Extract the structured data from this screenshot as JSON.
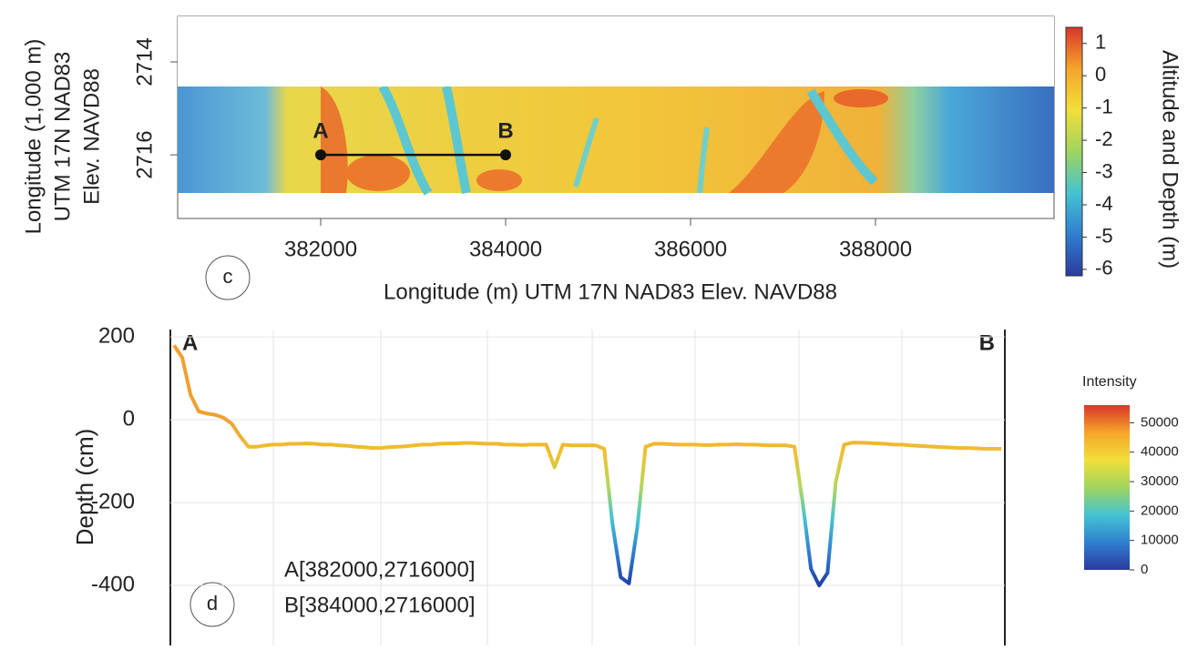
{
  "chart_data": [
    {
      "type": "raster",
      "ylabel": [
        "Longitude (1,000 m)",
        "UTM 17N NAD83",
        "Elev. NAVD88"
      ],
      "xlabel": "Longitude (m) UTM 17N NAD83 Elev. NAVD88",
      "panel_label": "c",
      "xlim": [
        380453,
        389931
      ],
      "xticks": [
        382000,
        384000,
        386000,
        388000
      ],
      "ylim": [
        2713.02,
        2717.37
      ],
      "yticks": [
        2714,
        2716
      ],
      "y_inverted": true,
      "points": [
        {
          "label": "A",
          "x": 382000,
          "y": 2716
        },
        {
          "label": "B",
          "x": 384000,
          "y": 2716
        }
      ],
      "colorbar": {
        "title": "Altitude and Depth (m)",
        "clim": [
          -6.2,
          1.5
        ],
        "ticks": [
          1,
          0,
          -1,
          -2,
          -3,
          -4,
          -5,
          -6
        ],
        "colors": [
          "#2b3a9e",
          "#2f7fd0",
          "#45c3d2",
          "#9fd45e",
          "#f2df3a",
          "#f5a52a",
          "#d9352a"
        ]
      }
    },
    {
      "type": "line",
      "ylabel": "Depth (cm)",
      "panel_label": "d",
      "start_label": "A",
      "end_label": "B",
      "annotations": [
        "A[382000,2716000]",
        "B[384000,2716000]"
      ],
      "ylim": [
        -545,
        218
      ],
      "yticks": [
        200,
        0,
        -200,
        -400
      ],
      "values": [
        180,
        150,
        60,
        20,
        15,
        12,
        5,
        -10,
        -40,
        -65,
        -65,
        -62,
        -60,
        -60,
        -58,
        -58,
        -57,
        -58,
        -60,
        -60,
        -62,
        -63,
        -65,
        -66,
        -68,
        -68,
        -66,
        -65,
        -64,
        -62,
        -60,
        -60,
        -58,
        -57,
        -57,
        -56,
        -56,
        -57,
        -58,
        -58,
        -60,
        -60,
        -61,
        -60,
        -60,
        -60,
        -115,
        -60,
        -62,
        -62,
        -62,
        -62,
        -70,
        -250,
        -380,
        -395,
        -260,
        -65,
        -58,
        -58,
        -59,
        -60,
        -60,
        -60,
        -61,
        -61,
        -60,
        -60,
        -59,
        -60,
        -60,
        -61,
        -62,
        -62,
        -62,
        -65,
        -200,
        -360,
        -400,
        -370,
        -150,
        -60,
        -55,
        -55,
        -56,
        -57,
        -58,
        -60,
        -60,
        -62,
        -63,
        -64,
        -65,
        -66,
        -67,
        -68,
        -68,
        -69,
        -70,
        -70,
        -70
      ],
      "colorbar": {
        "title": "Intensity",
        "clim": [
          0,
          56000
        ],
        "ticks": [
          50000,
          40000,
          30000,
          20000,
          10000,
          0
        ],
        "colors": [
          "#2b3a9e",
          "#2f7fd0",
          "#45c3d2",
          "#9fd45e",
          "#f2df3a",
          "#f5a52a",
          "#d9352a"
        ]
      }
    }
  ]
}
